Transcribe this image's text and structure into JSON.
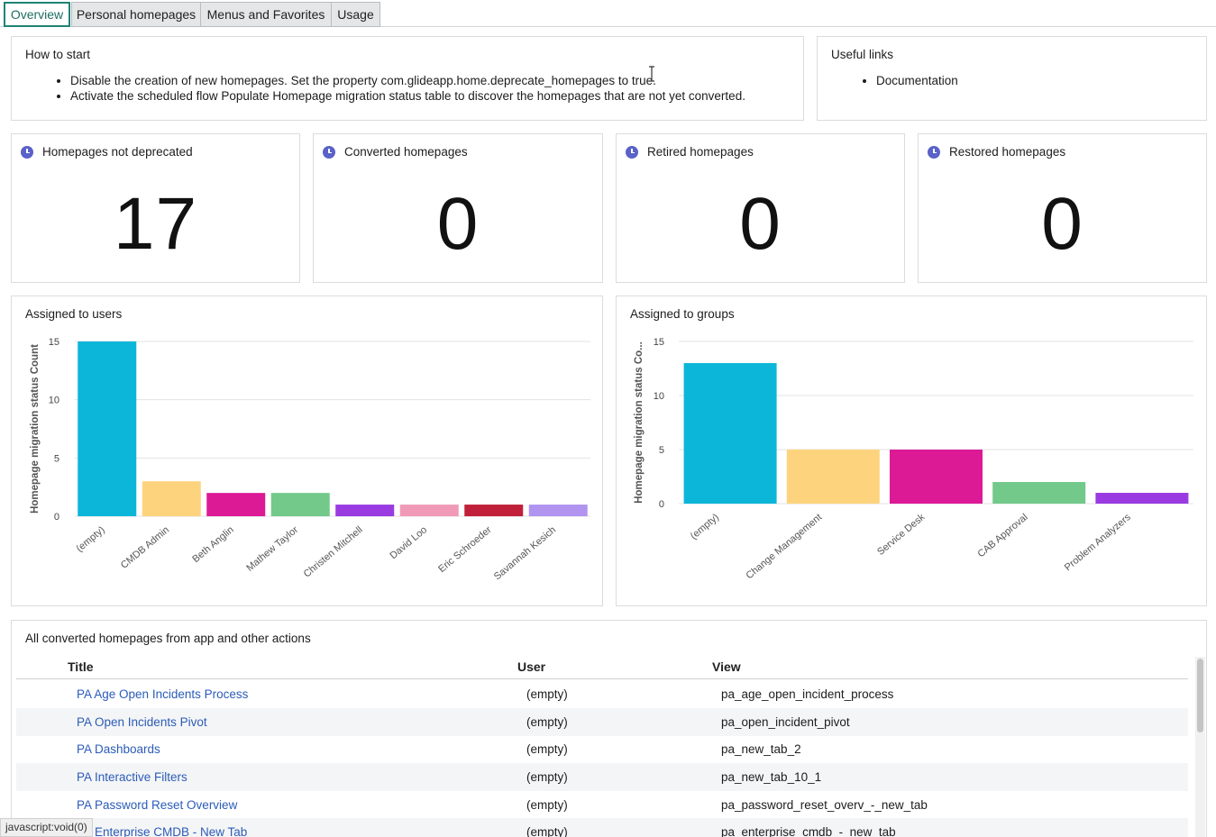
{
  "tabs": [
    {
      "label": "Overview",
      "active": true
    },
    {
      "label": "Personal homepages",
      "active": false
    },
    {
      "label": "Menus and Favorites",
      "active": false
    },
    {
      "label": "Usage",
      "active": false
    }
  ],
  "how_to_start": {
    "title": "How to start",
    "items": [
      "Disable the creation of new homepages. Set the property com.glideapp.home.deprecate_homepages to true.",
      "Activate the scheduled flow Populate Homepage migration status table to discover the homepages that are not yet converted."
    ]
  },
  "useful_links": {
    "title": "Useful links",
    "items": [
      "Documentation"
    ]
  },
  "scorecards": [
    {
      "title": "Homepages not deprecated",
      "value": "17"
    },
    {
      "title": "Converted homepages",
      "value": "0"
    },
    {
      "title": "Retired homepages",
      "value": "0"
    },
    {
      "title": "Restored homepages",
      "value": "0"
    }
  ],
  "chart_data": [
    {
      "type": "bar",
      "title": "Assigned to users",
      "ylabel": "Homepage migration status Count",
      "xlabel": "",
      "ylim": [
        0,
        15
      ],
      "yticks": [
        0,
        5,
        10,
        15
      ],
      "grid": true,
      "categories": [
        "(empty)",
        "CMDB Admin",
        "Beth Anglin",
        "Mathew Taylor",
        "Christen Mitchell",
        "David Loo",
        "Eric Schroeder",
        "Savannah Kesich"
      ],
      "values": [
        15,
        3,
        2,
        2,
        1,
        1,
        1,
        1
      ],
      "colors": [
        "#0cb6d8",
        "#fdd47d",
        "#dc1a96",
        "#72c98a",
        "#9a3be2",
        "#f09ab8",
        "#c0203a",
        "#b194f0"
      ]
    },
    {
      "type": "bar",
      "title": "Assigned to groups",
      "ylabel": "Homepage migration status Co...",
      "xlabel": "",
      "ylim": [
        0,
        15
      ],
      "yticks": [
        0,
        5,
        10,
        15
      ],
      "grid": true,
      "categories": [
        "(empty)",
        "Change Management",
        "Service Desk",
        "CAB Approval",
        "Problem Analyzers"
      ],
      "values": [
        13,
        5,
        5,
        2,
        1
      ],
      "colors": [
        "#0cb6d8",
        "#fdd47d",
        "#dc1a96",
        "#72c98a",
        "#9a3be2"
      ]
    }
  ],
  "converted_table": {
    "title": "All converted homepages from app and other actions",
    "columns": [
      "Title",
      "User",
      "View"
    ],
    "rows": [
      {
        "title": "PA Age Open Incidents Process",
        "user": "(empty)",
        "view": "pa_age_open_incident_process"
      },
      {
        "title": "PA Open Incidents Pivot",
        "user": "(empty)",
        "view": "pa_open_incident_pivot"
      },
      {
        "title": "PA Dashboards",
        "user": "(empty)",
        "view": "pa_new_tab_2"
      },
      {
        "title": "PA Interactive Filters",
        "user": "(empty)",
        "view": "pa_new_tab_10_1"
      },
      {
        "title": "PA Password Reset Overview",
        "user": "(empty)",
        "view": "pa_password_reset_overv_-_new_tab"
      },
      {
        "title": "PA Enterprise CMDB - New Tab",
        "user": "(empty)",
        "view": "pa_enterprise_cmdb_-_new_tab"
      }
    ]
  },
  "status_bar": "javascript:void(0)"
}
